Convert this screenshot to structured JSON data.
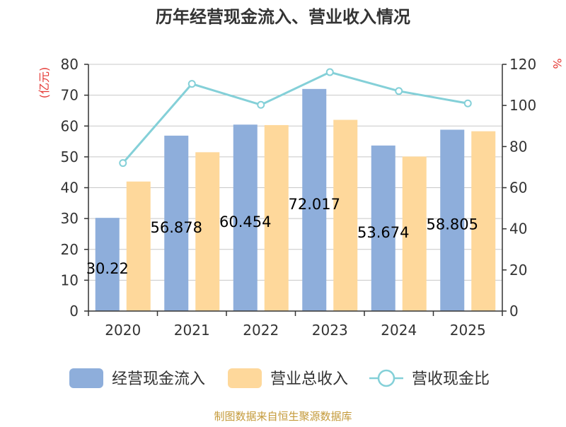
{
  "chart_data": {
    "type": "bar",
    "title": "历年经营现金流入、营业收入情况",
    "source": "制图数据来自恒生聚源数据库",
    "y_left_unit": "(亿元)",
    "y_right_unit": "%",
    "categories": [
      "2020",
      "2021",
      "2022",
      "2023",
      "2024",
      "2025"
    ],
    "ylim_left": [
      0,
      80
    ],
    "yticks_left": [
      0,
      10,
      20,
      30,
      40,
      50,
      60,
      70,
      80
    ],
    "ylim_right": [
      0,
      120
    ],
    "yticks_right": [
      0,
      20,
      40,
      60,
      80,
      100,
      120
    ],
    "grid": true,
    "legend_position": "bottom",
    "series": [
      {
        "name": "经营现金流入",
        "type": "bar",
        "axis": "left",
        "color": "#8eaedb",
        "values": [
          30.22,
          56.878,
          60.454,
          72.017,
          53.674,
          58.805
        ],
        "labels": [
          "30.22",
          "56.878",
          "60.454",
          "72.017",
          "53.674",
          "58.805"
        ]
      },
      {
        "name": "营业总收入",
        "type": "bar",
        "axis": "left",
        "color": "#fed89b",
        "values": [
          42.0,
          51.5,
          60.3,
          62.0,
          50.1,
          58.3
        ]
      },
      {
        "name": "营收现金比",
        "type": "line",
        "axis": "right",
        "color": "#84d0d8",
        "values": [
          72.0,
          110.5,
          100.3,
          116.2,
          107.0,
          101.0
        ]
      }
    ]
  }
}
